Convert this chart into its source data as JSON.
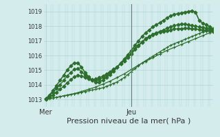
{
  "bg_color": "#d4ecec",
  "grid_color": "#b0d4d4",
  "line_color": "#2d6e2d",
  "marker_color": "#2d6e2d",
  "xlabel": "Pression niveau de la mer( hPa )",
  "xlabel_fontsize": 8,
  "xtick_labels": [
    "Mer",
    "Jeu"
  ],
  "xtick_positions": [
    0,
    24
  ],
  "ytick_min": 1013,
  "ytick_max": 1019,
  "ytick_step": 1,
  "ylim": [
    1012.5,
    1019.5
  ],
  "xlim": [
    -0.5,
    47
  ],
  "vline_x": 24,
  "series": [
    {
      "x": [
        0,
        1,
        2,
        3,
        4,
        5,
        6,
        7,
        8,
        9,
        10,
        11,
        12,
        13,
        14,
        15,
        16,
        17,
        18,
        19,
        20,
        21,
        22,
        23,
        24,
        25,
        26,
        27,
        28,
        29,
        30,
        31,
        32,
        33,
        34,
        35,
        36,
        37,
        38,
        39,
        40,
        41,
        42,
        43,
        44,
        45,
        46,
        47
      ],
      "y": [
        1013.0,
        1013.05,
        1013.1,
        1013.15,
        1013.2,
        1013.25,
        1013.3,
        1013.35,
        1013.4,
        1013.45,
        1013.5,
        1013.55,
        1013.6,
        1013.65,
        1013.7,
        1013.75,
        1013.8,
        1013.9,
        1014.0,
        1014.1,
        1014.2,
        1014.35,
        1014.5,
        1014.7,
        1014.9,
        1015.1,
        1015.3,
        1015.5,
        1015.65,
        1015.8,
        1015.95,
        1016.1,
        1016.25,
        1016.4,
        1016.55,
        1016.7,
        1016.8,
        1016.9,
        1017.0,
        1017.1,
        1017.2,
        1017.3,
        1017.4,
        1017.5,
        1017.6,
        1017.65,
        1017.7,
        1017.75
      ],
      "marker": "+",
      "markersize": 3.0,
      "linewidth": 0.9,
      "zorder": 2
    },
    {
      "x": [
        0,
        2,
        4,
        6,
        8,
        10,
        12,
        14,
        16,
        18,
        20,
        22,
        24,
        26,
        28,
        30,
        32,
        34,
        36,
        38,
        40,
        42,
        44,
        46,
        47
      ],
      "y": [
        1013.05,
        1013.1,
        1013.2,
        1013.3,
        1013.4,
        1013.55,
        1013.7,
        1013.85,
        1014.05,
        1014.25,
        1014.5,
        1014.75,
        1015.05,
        1015.35,
        1015.6,
        1015.85,
        1016.1,
        1016.35,
        1016.55,
        1016.75,
        1016.95,
        1017.15,
        1017.35,
        1017.55,
        1017.65
      ],
      "marker": "+",
      "markersize": 3.0,
      "linewidth": 0.9,
      "zorder": 2
    },
    {
      "x": [
        0,
        1,
        2,
        3,
        4,
        5,
        6,
        7,
        8,
        9,
        10,
        11,
        12,
        13,
        14,
        15,
        16,
        17,
        18,
        19,
        20,
        21,
        22,
        23,
        24,
        25,
        26,
        27,
        28,
        29,
        30,
        31,
        32,
        33,
        34,
        35,
        36,
        37,
        38,
        39,
        40,
        41,
        42,
        43,
        44,
        45,
        46,
        47
      ],
      "y": [
        1013.0,
        1013.15,
        1013.3,
        1013.5,
        1013.7,
        1013.9,
        1014.15,
        1014.35,
        1014.55,
        1014.65,
        1014.6,
        1014.5,
        1014.4,
        1014.35,
        1014.4,
        1014.5,
        1014.6,
        1014.75,
        1014.9,
        1015.05,
        1015.2,
        1015.45,
        1015.65,
        1015.85,
        1016.1,
        1016.4,
        1016.65,
        1016.9,
        1017.1,
        1017.25,
        1017.4,
        1017.5,
        1017.6,
        1017.65,
        1017.7,
        1017.75,
        1017.8,
        1017.82,
        1017.84,
        1017.85,
        1017.85,
        1017.83,
        1017.8,
        1017.78,
        1017.75,
        1017.72,
        1017.7,
        1017.65
      ],
      "marker": "D",
      "markersize": 2.5,
      "linewidth": 1.0,
      "zorder": 3
    },
    {
      "x": [
        0,
        1,
        2,
        3,
        4,
        5,
        6,
        7,
        8,
        9,
        10,
        11,
        12,
        13,
        14,
        15,
        16,
        17,
        18,
        19,
        20,
        21,
        22,
        23,
        24,
        25,
        26,
        27,
        28,
        29,
        30,
        31,
        32,
        33,
        34,
        35,
        36,
        37,
        38,
        39,
        40,
        41,
        42,
        43,
        44,
        45,
        46,
        47
      ],
      "y": [
        1013.05,
        1013.25,
        1013.5,
        1013.75,
        1014.0,
        1014.3,
        1014.6,
        1014.85,
        1015.05,
        1015.1,
        1014.9,
        1014.65,
        1014.45,
        1014.3,
        1014.3,
        1014.35,
        1014.5,
        1014.65,
        1014.85,
        1015.05,
        1015.2,
        1015.45,
        1015.65,
        1015.9,
        1016.15,
        1016.45,
        1016.7,
        1016.95,
        1017.15,
        1017.3,
        1017.45,
        1017.55,
        1017.65,
        1017.75,
        1017.85,
        1017.95,
        1018.05,
        1018.1,
        1018.15,
        1018.15,
        1018.1,
        1018.05,
        1018.0,
        1017.95,
        1017.9,
        1017.85,
        1017.8,
        1017.75
      ],
      "marker": "D",
      "markersize": 2.5,
      "linewidth": 1.0,
      "zorder": 3
    },
    {
      "x": [
        0,
        1,
        2,
        3,
        4,
        5,
        6,
        7,
        8,
        9,
        10,
        11,
        12,
        13,
        14,
        15,
        16,
        17,
        18,
        19,
        20,
        21,
        22,
        23,
        24,
        25,
        26,
        27,
        28,
        29,
        30,
        31,
        32,
        33,
        34,
        35,
        36,
        37,
        38,
        39,
        40,
        41,
        42,
        43,
        44,
        45,
        46,
        47
      ],
      "y": [
        1013.05,
        1013.3,
        1013.6,
        1013.95,
        1014.3,
        1014.65,
        1015.0,
        1015.3,
        1015.5,
        1015.5,
        1015.2,
        1014.85,
        1014.55,
        1014.3,
        1014.2,
        1014.2,
        1014.3,
        1014.5,
        1014.7,
        1014.95,
        1015.2,
        1015.5,
        1015.75,
        1016.05,
        1016.35,
        1016.7,
        1017.0,
        1017.3,
        1017.55,
        1017.75,
        1017.95,
        1018.1,
        1018.25,
        1018.4,
        1018.55,
        1018.7,
        1018.8,
        1018.85,
        1018.9,
        1018.95,
        1019.0,
        1019.05,
        1018.95,
        1018.4,
        1018.2,
        1018.1,
        1017.95,
        1017.8
      ],
      "marker": "D",
      "markersize": 2.5,
      "linewidth": 1.2,
      "zorder": 4
    }
  ]
}
